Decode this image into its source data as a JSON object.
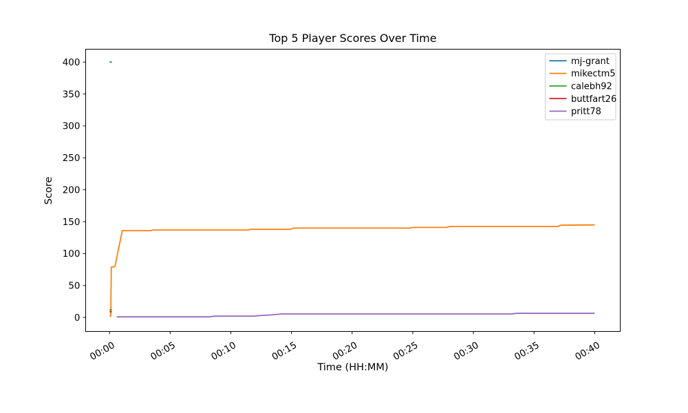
{
  "chart_data": {
    "type": "line",
    "title": "Top 5 Player Scores Over Time",
    "xlabel": "Time (HH:MM)",
    "ylabel": "Score",
    "grid": false,
    "background_color": "#ffffff",
    "x_unit": "minutes",
    "x_ticks": [
      {
        "t": 0,
        "label": "00:00"
      },
      {
        "t": 5,
        "label": "00:05"
      },
      {
        "t": 10,
        "label": "00:10"
      },
      {
        "t": 15,
        "label": "00:15"
      },
      {
        "t": 20,
        "label": "00:20"
      },
      {
        "t": 25,
        "label": "00:25"
      },
      {
        "t": 30,
        "label": "00:30"
      },
      {
        "t": 35,
        "label": "00:35"
      },
      {
        "t": 40,
        "label": "00:40"
      }
    ],
    "y_ticks": [
      0,
      50,
      100,
      150,
      200,
      250,
      300,
      350,
      400
    ],
    "xlim_minutes": [
      -1.95,
      42.1
    ],
    "ylim": [
      -22.6,
      419.5
    ],
    "legend": {
      "position": "upper right",
      "entries": [
        "mj-grant",
        "mikectm5",
        "calebh92",
        "buttfart26",
        "pritt78"
      ]
    },
    "series": [
      {
        "name": "mj-grant",
        "color": "#1f77b4",
        "points": [
          [
            0,
            400
          ],
          [
            0.2,
            400
          ]
        ]
      },
      {
        "name": "mikectm5",
        "color": "#ff7f0e",
        "points": [
          [
            0,
            2
          ],
          [
            0.1,
            2
          ],
          [
            0.15,
            79
          ],
          [
            0.35,
            79
          ],
          [
            0.45,
            80
          ],
          [
            1.05,
            136
          ],
          [
            3.4,
            136
          ],
          [
            3.55,
            137
          ],
          [
            11.4,
            137
          ],
          [
            11.6,
            138
          ],
          [
            14.9,
            138
          ],
          [
            15.15,
            140
          ],
          [
            24.75,
            140
          ],
          [
            25.0,
            141
          ],
          [
            27.8,
            141
          ],
          [
            28.05,
            142.5
          ],
          [
            36.95,
            142.5
          ],
          [
            37.2,
            144.5
          ],
          [
            40,
            145
          ]
        ]
      },
      {
        "name": "calebh92",
        "color": "#2ca02c",
        "points": [
          [
            0,
            12
          ],
          [
            0.2,
            12
          ]
        ]
      },
      {
        "name": "buttfart26",
        "color": "#d62728",
        "points": [
          [
            0,
            9
          ],
          [
            0.2,
            9
          ]
        ]
      },
      {
        "name": "pritt78",
        "color": "#9467bd",
        "points": [
          [
            0.6,
            1
          ],
          [
            8.3,
            1
          ],
          [
            8.6,
            2
          ],
          [
            11.9,
            2
          ],
          [
            12.4,
            3
          ],
          [
            13.3,
            4
          ],
          [
            14.2,
            5.5
          ],
          [
            33.2,
            5.5
          ],
          [
            33.5,
            6.5
          ],
          [
            40,
            6.5
          ]
        ]
      }
    ]
  }
}
